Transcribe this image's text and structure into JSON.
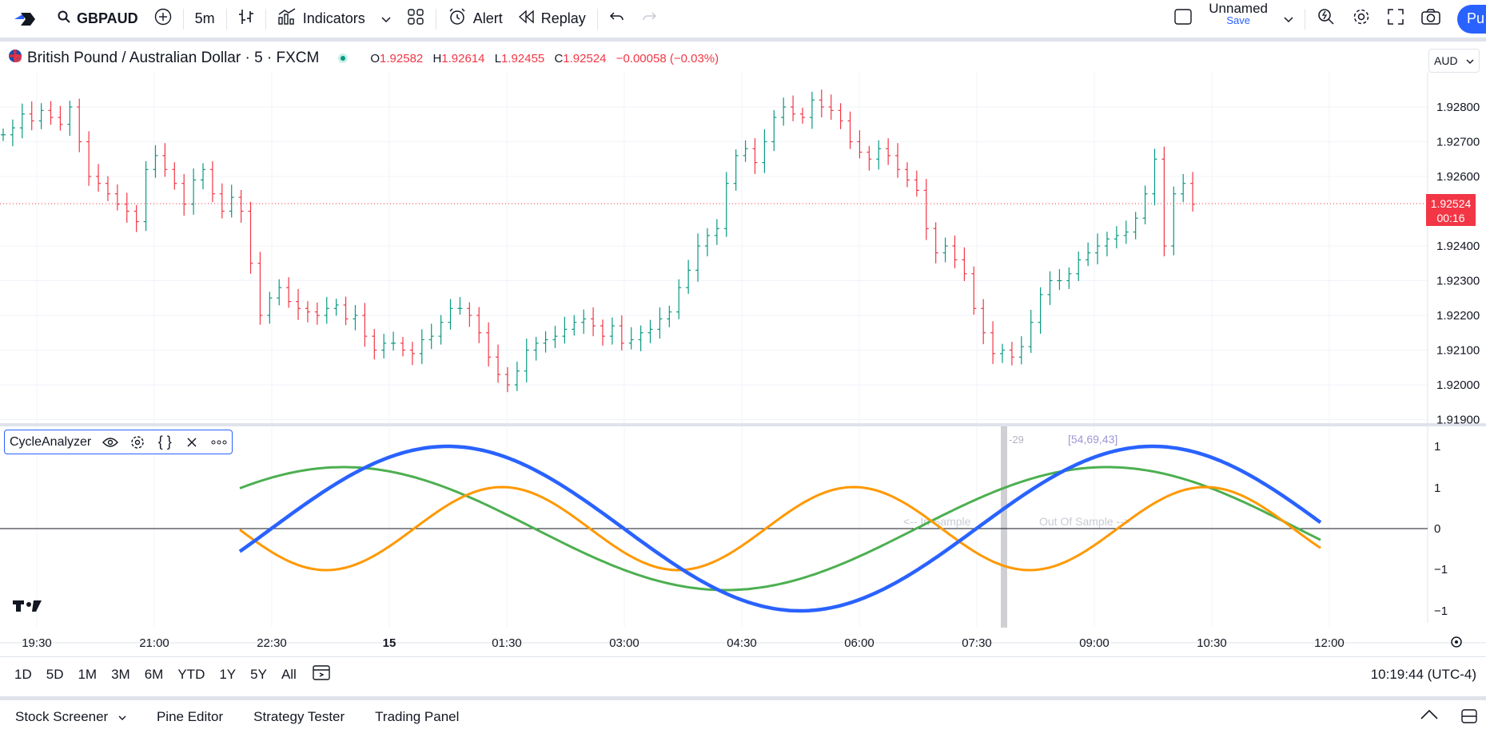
{
  "toolbar": {
    "symbol": "GBPAUD",
    "interval": "5m",
    "indicators_label": "Indicators",
    "alert_label": "Alert",
    "replay_label": "Replay",
    "layout_name": "Unnamed",
    "save_label": "Save",
    "publish_label": "Pu"
  },
  "legend": {
    "title": "British Pound / Australian Dollar · 5 · FXCM",
    "o_label": "O",
    "o": "1.92582",
    "h_label": "H",
    "h": "1.92614",
    "l_label": "L",
    "l": "1.92455",
    "c_label": "C",
    "c": "1.92524",
    "change": "−0.00058 (−0.03%)"
  },
  "currency": "AUD",
  "price_axis": {
    "ticks": [
      "1.92800",
      "1.92700",
      "1.92600",
      "1.92400",
      "1.92300",
      "1.92200",
      "1.92100",
      "1.92000",
      "1.91900"
    ],
    "current_price": "1.92524",
    "countdown": "00:16"
  },
  "indicator": {
    "name": "CycleAnalyzer",
    "marker_left": "-29",
    "marker_right": "[54,69,43]",
    "in_sample": "<-- In Sample",
    "out_sample": "Out Of Sample -->",
    "axis_ticks": [
      "1",
      "1",
      "0",
      "−1",
      "−1"
    ]
  },
  "time_axis": [
    "19:30",
    "21:00",
    "22:30",
    "15",
    "01:30",
    "03:00",
    "04:30",
    "06:00",
    "07:30",
    "09:00",
    "10:30",
    "12:00"
  ],
  "ranges": [
    "1D",
    "5D",
    "1M",
    "3M",
    "6M",
    "YTD",
    "1Y",
    "5Y",
    "All"
  ],
  "clock": "10:19:44 (UTC-4)",
  "panels": [
    "Stock Screener",
    "Pine Editor",
    "Strategy Tester",
    "Trading Panel"
  ],
  "colors": {
    "up": "#089981",
    "down": "#f23645",
    "blue": "#2962ff",
    "orange": "#ff9800",
    "green": "#4caf50"
  },
  "chart_data": {
    "type": "ohlc",
    "price_range": [
      1.919,
      1.9285
    ],
    "closes": [
      1.9272,
      1.9274,
      1.9278,
      1.9276,
      1.9279,
      1.9277,
      1.9275,
      1.928,
      1.927,
      1.926,
      1.9258,
      1.9255,
      1.9252,
      1.925,
      1.9247,
      1.9262,
      1.9266,
      1.9262,
      1.9258,
      1.9252,
      1.9259,
      1.9262,
      1.9255,
      1.925,
      1.9254,
      1.925,
      1.9235,
      1.922,
      1.9225,
      1.9228,
      1.9224,
      1.9222,
      1.9221,
      1.922,
      1.9222,
      1.9223,
      1.9219,
      1.922,
      1.9214,
      1.921,
      1.9212,
      1.9212,
      1.921,
      1.9209,
      1.9213,
      1.9214,
      1.9218,
      1.9222,
      1.9222,
      1.922,
      1.9215,
      1.9208,
      1.9203,
      1.92,
      1.9204,
      1.921,
      1.9212,
      1.9213,
      1.9214,
      1.9216,
      1.9218,
      1.9219,
      1.9217,
      1.9214,
      1.9217,
      1.9212,
      1.9213,
      1.9215,
      1.9216,
      1.9219,
      1.9221,
      1.9228,
      1.9233,
      1.924,
      1.9243,
      1.9245,
      1.9258,
      1.9266,
      1.9268,
      1.9264,
      1.927,
      1.9277,
      1.928,
      1.9278,
      1.9277,
      1.9282,
      1.928,
      1.9279,
      1.9276,
      1.927,
      1.9267,
      1.9265,
      1.9268,
      1.9266,
      1.9262,
      1.9259,
      1.9256,
      1.9245,
      1.9238,
      1.924,
      1.9236,
      1.9232,
      1.9222,
      1.9215,
      1.9209,
      1.921,
      1.9208,
      1.9211,
      1.9218,
      1.9226,
      1.923,
      1.923,
      1.9232,
      1.9236,
      1.9238,
      1.924,
      1.9242,
      1.9243,
      1.9244,
      1.9248,
      1.9255,
      1.9265,
      1.924,
      1.9255,
      1.9258,
      1.9252
    ]
  }
}
